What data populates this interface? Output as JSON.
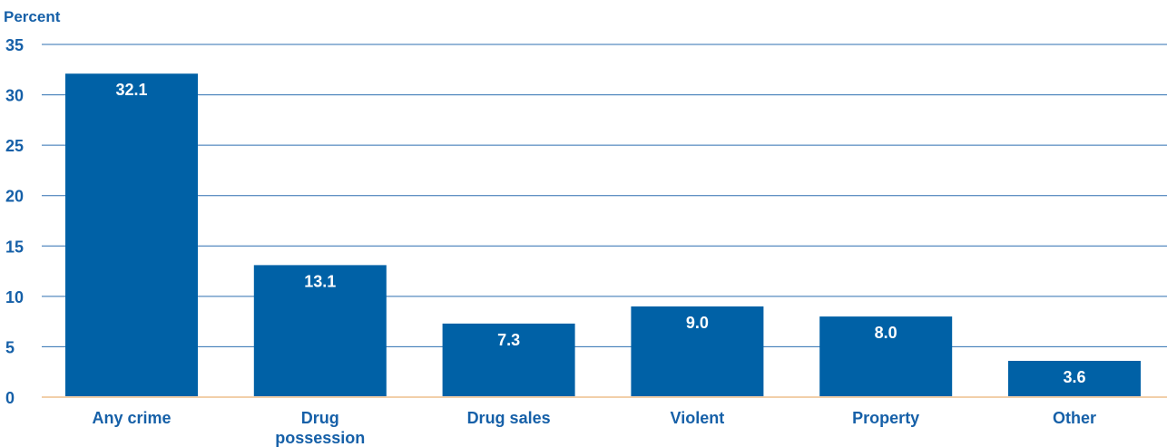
{
  "chart_data": {
    "type": "bar",
    "ylabel": "Percent",
    "categories": [
      [
        "Any crime"
      ],
      [
        "Drug",
        "possession"
      ],
      [
        "Drug sales"
      ],
      [
        "Violent"
      ],
      [
        "Property"
      ],
      [
        "Other"
      ]
    ],
    "values": [
      32.1,
      13.1,
      7.3,
      9.0,
      8.0,
      3.6
    ],
    "value_labels": [
      "32.1",
      "13.1",
      "7.3",
      "9.0",
      "8.0",
      "3.6"
    ],
    "ylim": [
      0,
      35
    ],
    "yticks": [
      0,
      5,
      10,
      15,
      20,
      25,
      30,
      35
    ],
    "grid": true,
    "colors": {
      "bar": "#0061a6",
      "grid": "#2d6fb0",
      "baseline": "#f2cfa9",
      "text": "#1660a8",
      "value_text": "#ffffff"
    }
  }
}
